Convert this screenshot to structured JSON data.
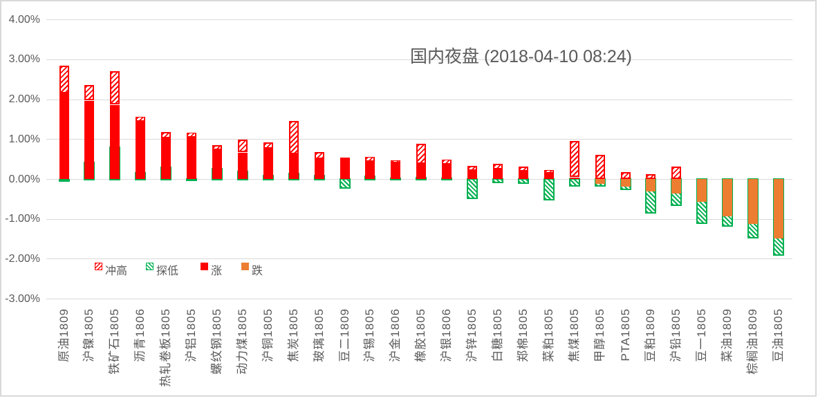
{
  "chart_data": {
    "type": "bar",
    "title": "国内夜盘 (2018-04-10 08:24)",
    "ylim": [
      -3,
      4
    ],
    "y_ticks": [
      {
        "label": "4.00%",
        "value": 4
      },
      {
        "label": "3.00%",
        "value": 3
      },
      {
        "label": "2.00%",
        "value": 2
      },
      {
        "label": "1.00%",
        "value": 1
      },
      {
        "label": "0.00%",
        "value": 0
      },
      {
        "label": "-1.00%",
        "value": -1
      },
      {
        "label": "-2.00%",
        "value": -2
      },
      {
        "label": "-3.00%",
        "value": -3
      }
    ],
    "legend": [
      {
        "label": "冲高",
        "style": "hatch-red"
      },
      {
        "label": "探低",
        "style": "hatch-green"
      },
      {
        "label": "涨",
        "style": "solid-red"
      },
      {
        "label": "跌",
        "style": "solid-orange"
      }
    ],
    "colors": {
      "rise": "#FF0000",
      "fall": "#ED7D31",
      "low": "#00B050",
      "grid": "#D9D9D9",
      "text": "#595959"
    },
    "bars": [
      {
        "name": "原油1809",
        "close": 2.16,
        "high": 2.85,
        "low": 0.0
      },
      {
        "name": "沪镍1805",
        "close": 1.96,
        "high": 2.35,
        "low": 0.43
      },
      {
        "name": "铁矿石1805",
        "close": 1.86,
        "high": 2.7,
        "low": 0.82
      },
      {
        "name": "沥青1806",
        "close": 1.46,
        "high": 1.56,
        "low": 0.17
      },
      {
        "name": "热轧卷板1805",
        "close": 1.02,
        "high": 1.18,
        "low": 0.31
      },
      {
        "name": "沪铝1805",
        "close": 1.05,
        "high": 1.16,
        "low": 0.02
      },
      {
        "name": "螺纹钢1805",
        "close": 0.73,
        "high": 0.85,
        "low": 0.27
      },
      {
        "name": "动力煤1805",
        "close": 0.66,
        "high": 0.98,
        "low": 0.2
      },
      {
        "name": "沪铜1805",
        "close": 0.76,
        "high": 0.92,
        "low": 0.1
      },
      {
        "name": "焦炭1805",
        "close": 0.63,
        "high": 1.46,
        "low": 0.15
      },
      {
        "name": "玻璃1805",
        "close": 0.5,
        "high": 0.68,
        "low": 0.1
      },
      {
        "name": "豆二1809",
        "close": 0.53,
        "high": 0.53,
        "low": -0.25
      },
      {
        "name": "沪锡1805",
        "close": 0.45,
        "high": 0.56,
        "low": 0.09
      },
      {
        "name": "沪金1806",
        "close": 0.42,
        "high": 0.47,
        "low": 0.03
      },
      {
        "name": "橡胶1805",
        "close": 0.38,
        "high": 0.88,
        "low": 0.05
      },
      {
        "name": "沪银1806",
        "close": 0.39,
        "high": 0.49,
        "low": 0.03
      },
      {
        "name": "沪锌1805",
        "close": 0.2,
        "high": 0.33,
        "low": -0.51
      },
      {
        "name": "白糖1805",
        "close": 0.25,
        "high": 0.39,
        "low": -0.1
      },
      {
        "name": "郑棉1805",
        "close": 0.2,
        "high": 0.32,
        "low": -0.12
      },
      {
        "name": "菜粕1805",
        "close": 0.16,
        "high": 0.23,
        "low": -0.53
      },
      {
        "name": "焦煤1805",
        "close": 0.04,
        "high": 0.95,
        "low": -0.19
      },
      {
        "name": "甲醇1805",
        "close": -0.12,
        "high": 0.61,
        "low": -0.19
      },
      {
        "name": "PTA1805",
        "close": -0.19,
        "high": 0.17,
        "low": -0.28
      },
      {
        "name": "豆粕1809",
        "close": -0.31,
        "high": 0.12,
        "low": -0.86
      },
      {
        "name": "沪铅1805",
        "close": -0.36,
        "high": 0.32,
        "low": -0.68
      },
      {
        "name": "豆一1805",
        "close": -0.57,
        "high": 0.0,
        "low": -1.13
      },
      {
        "name": "菜油1809",
        "close": -0.94,
        "high": 0.0,
        "low": -1.2
      },
      {
        "name": "棕榈油1809",
        "close": -1.12,
        "high": 0.0,
        "low": -1.49
      },
      {
        "name": "豆油1805",
        "close": -1.49,
        "high": 0.0,
        "low": -1.93
      }
    ]
  }
}
